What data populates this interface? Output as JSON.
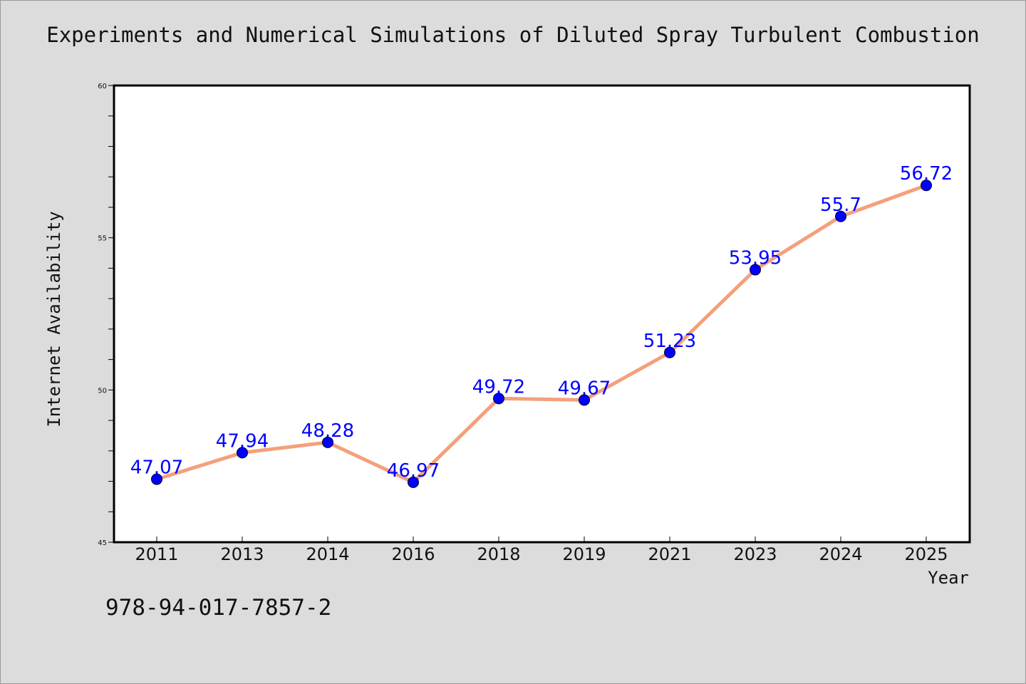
{
  "chart_data": {
    "type": "line",
    "title": "Experiments and Numerical Simulations of Diluted Spray Turbulent Combustion",
    "xlabel": "Year",
    "ylabel": "Internet Availability",
    "categories": [
      "2011",
      "2013",
      "2014",
      "2016",
      "2018",
      "2019",
      "2021",
      "2023",
      "2024",
      "2025"
    ],
    "series": [
      {
        "values": [
          47.07,
          47.94,
          48.28,
          46.97,
          49.72,
          49.67,
          51.23,
          53.95,
          55.7,
          56.72
        ],
        "labels": [
          "47.07",
          "47.94",
          "48.28",
          "46.97",
          "49.72",
          "49.67",
          "51.23",
          "53.95",
          "55.7",
          "56.72"
        ]
      }
    ],
    "ylim": [
      45,
      60
    ],
    "yticks": [
      "45",
      "50",
      "55",
      "60"
    ],
    "grid": false,
    "line_color": "#f4a07c",
    "marker_color": "#0000ff",
    "label_color": "#0000ff"
  },
  "footer": {
    "isbn": "978-94-017-7857-2"
  }
}
